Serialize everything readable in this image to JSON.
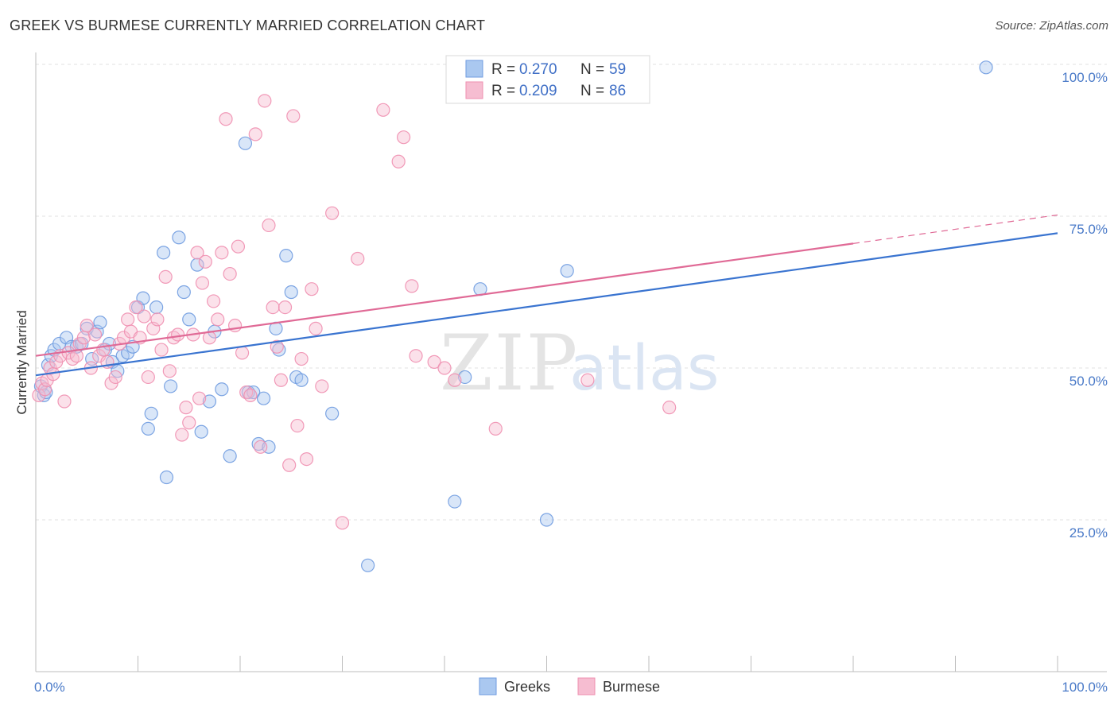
{
  "header": {
    "title": "GREEK VS BURMESE CURRENTLY MARRIED CORRELATION CHART",
    "source": "Source: ZipAtlas.com"
  },
  "watermark": {
    "zip": "ZIP",
    "atlas": "atlas"
  },
  "chart_data": {
    "type": "scatter",
    "title": "GREEK VS BURMESE CURRENTLY MARRIED CORRELATION CHART",
    "ylabel": "Currently Married",
    "xlabel": "",
    "xlim": [
      0,
      100
    ],
    "ylim": [
      0,
      102
    ],
    "x_tick_labels": [
      "0.0%",
      "100.0%"
    ],
    "y_ticks": [
      25,
      50,
      75,
      100
    ],
    "y_tick_labels": [
      "25.0%",
      "50.0%",
      "75.0%",
      "100.0%"
    ],
    "grid": true,
    "legend_placement": "top-center",
    "series": [
      {
        "name": "Greeks",
        "color": "#6f9be0",
        "fill": "#aac8f0",
        "R": "0.270",
        "N": "59",
        "trend": {
          "x": [
            0,
            100
          ],
          "y": [
            48.8,
            72.2
          ]
        },
        "points": [
          [
            0.5,
            47
          ],
          [
            0.8,
            45.5
          ],
          [
            1.0,
            46
          ],
          [
            1.2,
            50.5
          ],
          [
            1.5,
            52
          ],
          [
            1.8,
            53
          ],
          [
            2.3,
            54
          ],
          [
            3.0,
            55
          ],
          [
            3.5,
            53.5
          ],
          [
            4.0,
            53.5
          ],
          [
            4.5,
            54
          ],
          [
            5.0,
            56.5
          ],
          [
            5.5,
            51.5
          ],
          [
            6.0,
            56
          ],
          [
            6.3,
            57.5
          ],
          [
            6.8,
            53
          ],
          [
            7.2,
            54
          ],
          [
            7.5,
            51
          ],
          [
            8.0,
            49.5
          ],
          [
            8.5,
            52
          ],
          [
            9.0,
            52.5
          ],
          [
            9.5,
            53.5
          ],
          [
            10.0,
            60
          ],
          [
            10.5,
            61.5
          ],
          [
            11.0,
            40
          ],
          [
            11.3,
            42.5
          ],
          [
            11.8,
            60
          ],
          [
            12.5,
            69
          ],
          [
            12.8,
            32
          ],
          [
            13.2,
            47
          ],
          [
            14.0,
            71.5
          ],
          [
            14.5,
            62.5
          ],
          [
            15.0,
            58
          ],
          [
            15.8,
            67
          ],
          [
            16.2,
            39.5
          ],
          [
            17.0,
            44.5
          ],
          [
            17.5,
            56
          ],
          [
            18.2,
            46.5
          ],
          [
            19.0,
            35.5
          ],
          [
            20.5,
            87
          ],
          [
            20.8,
            46
          ],
          [
            21.3,
            46
          ],
          [
            21.8,
            37.5
          ],
          [
            22.3,
            45
          ],
          [
            22.8,
            37
          ],
          [
            23.5,
            56.5
          ],
          [
            23.8,
            53
          ],
          [
            24.5,
            68.5
          ],
          [
            25.0,
            62.5
          ],
          [
            25.5,
            48.5
          ],
          [
            26.0,
            48
          ],
          [
            29.0,
            42.5
          ],
          [
            32.5,
            17.5
          ],
          [
            41.0,
            28
          ],
          [
            42.0,
            48.5
          ],
          [
            43.5,
            63
          ],
          [
            50.0,
            25
          ],
          [
            52.0,
            66
          ],
          [
            93.0,
            99.5
          ]
        ]
      },
      {
        "name": "Burmese",
        "color": "#ef8fb0",
        "fill": "#f6bdd1",
        "R": "0.209",
        "N": "86",
        "trend": {
          "x": [
            0,
            80
          ],
          "y": [
            52.0,
            70.5
          ]
        },
        "trend_dashed": {
          "x": [
            80,
            100
          ],
          "y": [
            70.5,
            75.2
          ]
        },
        "points": [
          [
            0.3,
            45.5
          ],
          [
            0.6,
            47.5
          ],
          [
            0.9,
            46.5
          ],
          [
            1.1,
            48
          ],
          [
            1.4,
            50
          ],
          [
            1.7,
            49
          ],
          [
            2.0,
            51
          ],
          [
            2.4,
            52
          ],
          [
            2.8,
            44.5
          ],
          [
            3.2,
            52.5
          ],
          [
            3.6,
            51.5
          ],
          [
            4.0,
            52
          ],
          [
            4.3,
            54
          ],
          [
            4.7,
            55
          ],
          [
            5.0,
            57
          ],
          [
            5.4,
            50
          ],
          [
            5.8,
            55.5
          ],
          [
            6.2,
            52
          ],
          [
            6.6,
            53
          ],
          [
            7.0,
            51
          ],
          [
            7.4,
            47.5
          ],
          [
            7.8,
            48.5
          ],
          [
            8.2,
            54
          ],
          [
            8.6,
            55
          ],
          [
            9.0,
            58
          ],
          [
            9.3,
            56
          ],
          [
            9.8,
            60
          ],
          [
            10.2,
            55
          ],
          [
            10.6,
            58.5
          ],
          [
            11.0,
            48.5
          ],
          [
            11.5,
            56.5
          ],
          [
            11.9,
            58
          ],
          [
            12.3,
            53
          ],
          [
            12.7,
            65
          ],
          [
            13.1,
            49.5
          ],
          [
            13.5,
            55
          ],
          [
            13.9,
            55.5
          ],
          [
            14.3,
            39
          ],
          [
            14.7,
            43.5
          ],
          [
            15.0,
            41
          ],
          [
            15.4,
            55.5
          ],
          [
            15.8,
            69
          ],
          [
            16.0,
            45
          ],
          [
            16.3,
            64
          ],
          [
            16.6,
            67.5
          ],
          [
            17.0,
            55
          ],
          [
            17.4,
            61
          ],
          [
            17.8,
            58
          ],
          [
            18.2,
            69
          ],
          [
            18.6,
            91
          ],
          [
            19.0,
            65.5
          ],
          [
            19.5,
            57
          ],
          [
            19.8,
            70
          ],
          [
            20.2,
            52.5
          ],
          [
            20.6,
            46
          ],
          [
            21.0,
            45.5
          ],
          [
            21.5,
            88.5
          ],
          [
            22.0,
            37
          ],
          [
            22.4,
            94
          ],
          [
            22.8,
            73.5
          ],
          [
            23.2,
            60
          ],
          [
            23.6,
            53.5
          ],
          [
            24.0,
            48
          ],
          [
            24.4,
            60
          ],
          [
            24.8,
            34
          ],
          [
            25.2,
            91.5
          ],
          [
            25.6,
            40.5
          ],
          [
            26.0,
            51.5
          ],
          [
            26.5,
            35
          ],
          [
            27.0,
            63
          ],
          [
            27.4,
            56.5
          ],
          [
            28.0,
            47
          ],
          [
            29.0,
            75.5
          ],
          [
            30.0,
            24.5
          ],
          [
            31.5,
            68
          ],
          [
            34.0,
            92.5
          ],
          [
            35.5,
            84
          ],
          [
            36.0,
            88
          ],
          [
            36.8,
            63.5
          ],
          [
            37.2,
            52
          ],
          [
            39.0,
            51
          ],
          [
            40.0,
            50
          ],
          [
            41.0,
            48
          ],
          [
            45.0,
            40
          ],
          [
            54.0,
            48
          ],
          [
            62.0,
            43.5
          ]
        ]
      }
    ]
  },
  "legend": {
    "r_label": "R =",
    "n_label": "N =",
    "bottom_items": [
      "Greeks",
      "Burmese"
    ]
  },
  "colors": {
    "blue_line": "#3a74d0",
    "pink_line": "#e06a96",
    "grid": "#e2e2e2",
    "tick_text": "#4a7ac8"
  }
}
